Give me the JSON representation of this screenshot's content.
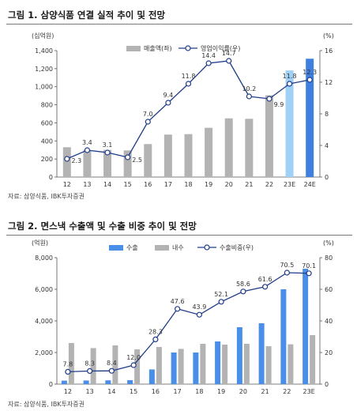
{
  "figures": [
    {
      "title": "그림 1. 삼양식품 연결 실적 추이 및 전망",
      "source": "자료: 삼양식품, IBK투자증권"
    },
    {
      "title": "그림 2. 면스낵 수출액 및 수출 비중 추이 및 전망",
      "source": "자료: 삼양식품, IBK투자증권"
    }
  ],
  "chart_data": [
    {
      "type": "bar",
      "left_unit": "(십억원)",
      "right_unit": "(%)",
      "categories": [
        "12",
        "13",
        "14",
        "15",
        "16",
        "17",
        "18",
        "19",
        "20",
        "21",
        "22",
        "23E",
        "24E"
      ],
      "series": [
        {
          "name": "매출액(좌)",
          "type": "bar",
          "axis": "left",
          "color": "#b3b3b3",
          "estimate_colors": {
            "23E": "#9fd0f5",
            "24E": "#3f7fe0"
          },
          "values": [
            330,
            300,
            300,
            295,
            365,
            470,
            475,
            545,
            650,
            645,
            905,
            1180,
            1310
          ]
        },
        {
          "name": "영업이익률(우)",
          "type": "line",
          "axis": "right",
          "color": "#1f3c88",
          "values": [
            2.3,
            3.4,
            3.1,
            2.5,
            7.0,
            9.4,
            11.8,
            14.4,
            14.7,
            10.2,
            9.9,
            11.8,
            12.3
          ],
          "labels": [
            "2.3",
            "3.4",
            "3.1",
            "2.5",
            "7.0",
            "9.4",
            "11.8",
            "14.4",
            "14.7",
            "10.2",
            "9.9",
            "11.8",
            "12.3"
          ]
        }
      ],
      "left_axis": {
        "min": 0,
        "max": 1400,
        "ticks": [
          "0",
          "200",
          "400",
          "600",
          "800",
          "1,000",
          "1,200",
          "1,400"
        ]
      },
      "right_axis": {
        "min": 0,
        "max": 16,
        "ticks": [
          "0",
          "4",
          "8",
          "12",
          "16"
        ]
      },
      "legend_position": "top-center",
      "grid": false
    },
    {
      "type": "bar",
      "left_unit": "(억원)",
      "right_unit": "(%)",
      "categories": [
        "12",
        "13",
        "14",
        "15",
        "16",
        "17",
        "18",
        "19",
        "20",
        "21",
        "22",
        "23E"
      ],
      "series": [
        {
          "name": "수출",
          "type": "bar",
          "axis": "left",
          "color": "#4a8fe7",
          "values": [
            220,
            230,
            240,
            250,
            930,
            2000,
            2000,
            2700,
            3600,
            3850,
            6000,
            7300
          ]
        },
        {
          "name": "내수",
          "type": "bar",
          "axis": "left",
          "color": "#b3b3b3",
          "values": [
            2600,
            2280,
            2450,
            2200,
            2350,
            2230,
            2550,
            2500,
            2550,
            2400,
            2520,
            3100
          ]
        },
        {
          "name": "수출비중(우)",
          "type": "line",
          "axis": "right",
          "color": "#1f3c88",
          "values": [
            7.8,
            8.3,
            8.4,
            12.0,
            28.3,
            47.6,
            43.9,
            52.1,
            58.6,
            61.6,
            70.5,
            70.1
          ],
          "labels": [
            "7.8",
            "8.3",
            "8.4",
            "12.0",
            "28.3",
            "47.6",
            "43.9",
            "52.1",
            "58.6",
            "61.6",
            "70.5",
            "70.1"
          ]
        }
      ],
      "left_axis": {
        "min": 0,
        "max": 8000,
        "ticks": [
          "0",
          "2,000",
          "4,000",
          "6,000",
          "8,000"
        ]
      },
      "right_axis": {
        "min": 0,
        "max": 80,
        "ticks": [
          "0",
          "20",
          "40",
          "60",
          "80"
        ]
      },
      "legend_position": "top-center",
      "grid": false
    }
  ]
}
